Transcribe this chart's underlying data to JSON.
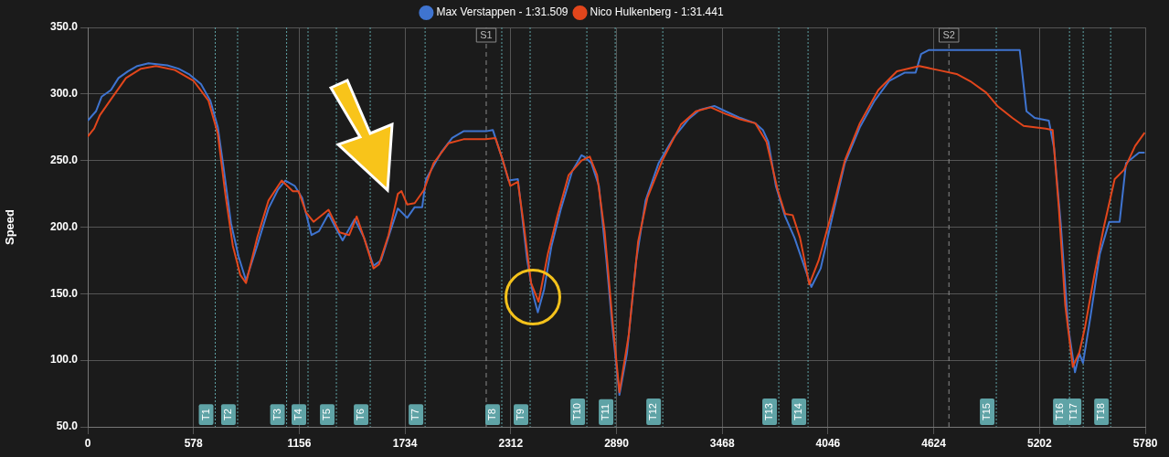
{
  "chart_data": {
    "type": "line",
    "ylabel": "Speed",
    "xlim": [
      0,
      5780
    ],
    "xticks": [
      0,
      578,
      1156,
      1734,
      2312,
      2890,
      3468,
      4046,
      4624,
      5202,
      5780
    ],
    "ylim": [
      50,
      350
    ],
    "yticks": [
      {
        "value": 50,
        "label": "50.0"
      },
      {
        "value": 100,
        "label": "100.0"
      },
      {
        "value": 150,
        "label": "150.0"
      },
      {
        "value": 200,
        "label": "200.0"
      },
      {
        "value": 250,
        "label": "250.0"
      },
      {
        "value": 300,
        "label": "300.0"
      },
      {
        "value": 350,
        "label": "350.0"
      }
    ],
    "grid": true,
    "legend": "top",
    "marker": "none",
    "line_style": "solid",
    "series": [
      {
        "name": "Max Verstappen - 1:31.509",
        "color": "#3f74d0",
        "x": [
          0,
          45,
          76,
          127,
          168,
          219,
          271,
          332,
          435,
          496,
          557,
          619,
          670,
          711,
          742,
          783,
          824,
          865,
          926,
          988,
          1039,
          1080,
          1131,
          1172,
          1223,
          1264,
          1316,
          1357,
          1393,
          1459,
          1510,
          1562,
          1603,
          1654,
          1695,
          1746,
          1787,
          1828,
          1849,
          1931,
          1992,
          2054,
          2177,
          2214,
          2269,
          2300,
          2351,
          2402,
          2433,
          2460,
          2494,
          2535,
          2587,
          2648,
          2699,
          2713,
          2753,
          2794,
          2835,
          2866,
          2906,
          2947,
          2998,
          3049,
          3120,
          3201,
          3283,
          3344,
          3425,
          3486,
          3567,
          3649,
          3690,
          3720,
          3761,
          3812,
          3863,
          3955,
          4006,
          4067,
          4138,
          4220,
          4301,
          4382,
          4464,
          4525,
          4555,
          4596,
          5094,
          5131,
          5176,
          5253,
          5282,
          5318,
          5359,
          5396,
          5420,
          5440,
          5481,
          5532,
          5583,
          5640,
          5675,
          5746,
          5777
        ],
        "values": [
          280,
          287,
          298,
          303,
          312,
          317,
          321,
          323,
          321.5,
          319,
          314.5,
          307.5,
          295,
          275,
          245,
          203,
          178,
          160,
          186,
          214,
          228,
          235,
          231,
          222,
          194,
          197,
          210,
          199,
          190,
          206,
          192,
          171,
          175,
          197,
          214,
          207,
          215,
          215,
          236,
          256,
          267,
          272,
          272,
          273,
          250,
          235,
          236,
          175,
          150,
          136,
          153,
          186,
          214,
          242,
          254,
          253,
          248,
          231,
          175,
          127,
          74,
          105,
          175,
          220,
          248,
          267,
          281,
          288,
          291,
          287,
          282,
          278,
          273,
          264,
          231,
          208,
          192,
          155,
          169,
          206,
          248,
          275,
          295,
          310,
          316,
          316,
          330,
          333,
          333,
          287,
          282,
          280,
          259,
          203,
          125,
          91,
          105,
          98,
          133,
          180,
          204,
          204,
          248,
          256,
          256
        ]
      },
      {
        "name": "Nico Hulkenberg - 1:31.441",
        "color": "#e2461c",
        "x": [
          0,
          35,
          66,
          127,
          209,
          291,
          373,
          476,
          578,
          660,
          711,
          752,
          793,
          834,
          865,
          926,
          988,
          1060,
          1121,
          1152,
          1193,
          1234,
          1316,
          1377,
          1429,
          1470,
          1510,
          1562,
          1592,
          1644,
          1695,
          1715,
          1746,
          1787,
          1838,
          1890,
          1972,
          2054,
          2177,
          2228,
          2269,
          2310,
          2351,
          2382,
          2423,
          2464,
          2515,
          2566,
          2628,
          2699,
          2744,
          2784,
          2825,
          2866,
          2906,
          2957,
          3008,
          3059,
          3140,
          3242,
          3324,
          3405,
          3486,
          3567,
          3649,
          3710,
          3771,
          3812,
          3853,
          3893,
          3944,
          3995,
          4067,
          4138,
          4220,
          4321,
          4423,
          4545,
          4647,
          4749,
          4830,
          4911,
          4972,
          5054,
          5115,
          5237,
          5274,
          5308,
          5343,
          5384,
          5420,
          5451,
          5502,
          5552,
          5613,
          5664,
          5725,
          5777
        ],
        "values": [
          268,
          274,
          284,
          296,
          312,
          319,
          321,
          318,
          310,
          295,
          270,
          225,
          186,
          164,
          158,
          192,
          220,
          235,
          227,
          227,
          211,
          204,
          213,
          196,
          194,
          208,
          192,
          169,
          172,
          194,
          225,
          227,
          217,
          218,
          228,
          248,
          263,
          266,
          266,
          267,
          250,
          231,
          234,
          203,
          158,
          144,
          180,
          208,
          239,
          250,
          253,
          239,
          197,
          133,
          76,
          119,
          189,
          222,
          250,
          277,
          287,
          290,
          285,
          281,
          278,
          264,
          228,
          210,
          209,
          192,
          157,
          175,
          211,
          250,
          278,
          303,
          317,
          321,
          318,
          315,
          309,
          301,
          291,
          282,
          276,
          274,
          273,
          214,
          141,
          95,
          106,
          125,
          164,
          199,
          236,
          243,
          261,
          271
        ]
      }
    ],
    "ref_lines": [
      {
        "axis": "x",
        "value": 697,
        "label": "T1",
        "color": "#5fa3a6",
        "line_style": "dotted"
      },
      {
        "axis": "x",
        "value": 819,
        "label": "T2",
        "color": "#5fa3a6",
        "line_style": "dotted"
      },
      {
        "axis": "x",
        "value": 1087,
        "label": "T3",
        "color": "#5fa3a6",
        "line_style": "dotted"
      },
      {
        "axis": "x",
        "value": 1204,
        "label": "T4",
        "color": "#5fa3a6",
        "line_style": "dotted"
      },
      {
        "axis": "x",
        "value": 1359,
        "label": "T5",
        "color": "#5fa3a6",
        "line_style": "dotted"
      },
      {
        "axis": "x",
        "value": 1544,
        "label": "T6",
        "color": "#5fa3a6",
        "line_style": "dotted"
      },
      {
        "axis": "x",
        "value": 1844,
        "label": "T7",
        "color": "#5fa3a6",
        "line_style": "dotted"
      },
      {
        "axis": "x",
        "value": 2178,
        "label": "S1",
        "color": "#8a8a8a",
        "line_style": "dashed"
      },
      {
        "axis": "x",
        "value": 2263,
        "label": "T8",
        "color": "#5fa3a6",
        "line_style": "dotted"
      },
      {
        "axis": "x",
        "value": 2418,
        "label": "T9",
        "color": "#5fa3a6",
        "line_style": "dotted"
      },
      {
        "axis": "x",
        "value": 2728,
        "label": "T10",
        "color": "#5fa3a6",
        "line_style": "dotted"
      },
      {
        "axis": "x",
        "value": 2883,
        "label": "T11",
        "color": "#5fa3a6",
        "line_style": "dotted"
      },
      {
        "axis": "x",
        "value": 3143,
        "label": "T12",
        "color": "#5fa3a6",
        "line_style": "dotted"
      },
      {
        "axis": "x",
        "value": 3777,
        "label": "T13",
        "color": "#5fa3a6",
        "line_style": "dotted"
      },
      {
        "axis": "x",
        "value": 3937,
        "label": "T14",
        "color": "#5fa3a6",
        "line_style": "dotted"
      },
      {
        "axis": "x",
        "value": 4707,
        "label": "S2",
        "color": "#8a8a8a",
        "line_style": "dashed"
      },
      {
        "axis": "x",
        "value": 4966,
        "label": "T15",
        "color": "#5fa3a6",
        "line_style": "dotted"
      },
      {
        "axis": "x",
        "value": 5366,
        "label": "T16",
        "color": "#5fa3a6",
        "line_style": "dotted"
      },
      {
        "axis": "x",
        "value": 5441,
        "label": "T17",
        "color": "#5fa3a6",
        "line_style": "dotted"
      },
      {
        "axis": "x",
        "value": 5591,
        "label": "T18",
        "color": "#5fa3a6",
        "line_style": "dotted"
      }
    ]
  }
}
